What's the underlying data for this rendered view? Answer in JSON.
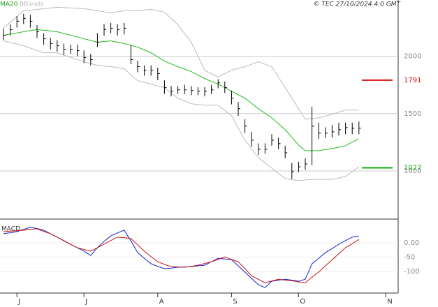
{
  "header": {
    "copyright": "© TEC 27/10/2024 4:0 GMT"
  },
  "chart_data": [
    {
      "type": "ohlc",
      "categories": [
        null,
        null,
        "J",
        null,
        null,
        null,
        null,
        null,
        null,
        null,
        null,
        null,
        "J",
        null,
        null,
        null,
        null,
        null,
        null,
        null,
        null,
        null,
        null,
        "A",
        null,
        null,
        null,
        null,
        null,
        null,
        null,
        null,
        null,
        null,
        "S",
        null,
        null,
        null,
        null,
        null,
        null,
        null,
        null,
        null,
        "O",
        null,
        null,
        null,
        null,
        null,
        null,
        null,
        null,
        null,
        null,
        null,
        null,
        "N"
      ],
      "high": [
        2240,
        2280,
        2350,
        2370,
        2360,
        2270,
        2200,
        2160,
        2140,
        2110,
        2100,
        2100,
        2050,
        2020,
        2200,
        2280,
        2290,
        2280,
        2290,
        2100,
        1960,
        1920,
        1920,
        1900,
        1790,
        1740,
        1740,
        1750,
        1740,
        1730,
        1730,
        1750,
        1800,
        1780,
        1700,
        1600,
        1450,
        1340,
        1240,
        1240,
        1320,
        1290,
        1220,
        1070,
        1080,
        1110,
        1560,
        1420,
        1380,
        1400,
        1420,
        1420,
        1420,
        1430,
        null,
        null,
        null,
        null
      ],
      "low": [
        2140,
        2180,
        2250,
        2280,
        2250,
        2160,
        2100,
        2060,
        2040,
        2010,
        2020,
        2000,
        1940,
        1920,
        2080,
        2180,
        2200,
        2180,
        2190,
        1930,
        1860,
        1830,
        1830,
        1790,
        1670,
        1650,
        1670,
        1670,
        1660,
        1660,
        1650,
        1670,
        1720,
        1680,
        1580,
        1480,
        1330,
        1210,
        1140,
        1150,
        1220,
        1190,
        1110,
        930,
        990,
        1010,
        1050,
        1280,
        1290,
        1290,
        1310,
        1320,
        1320,
        1320,
        null,
        null,
        null,
        null
      ],
      "close": [
        2183,
        2232,
        2305,
        2330,
        2305,
        2213,
        2152,
        2110,
        2091,
        2061,
        2061,
        2049,
        1988,
        1970,
        2122,
        2232,
        2244,
        2232,
        2244,
        1970,
        1909,
        1878,
        1878,
        1848,
        1726,
        1695,
        1707,
        1707,
        1701,
        1695,
        1695,
        1707,
        1768,
        1726,
        1634,
        1543,
        1390,
        1268,
        1189,
        1189,
        1268,
        1238,
        1158,
        994,
        1036,
        1061,
        1390,
        1329,
        1329,
        1341,
        1360,
        1378,
        1372,
        1372,
        null,
        null,
        null,
        null
      ],
      "color": "#000000",
      "series": [
        {
          "name": "MA20",
          "color": "#22bb22",
          "values": [
            2183,
            2193,
            2203,
            2213,
            2223,
            2232,
            2226,
            2220,
            2213,
            2198,
            2183,
            2168,
            2152,
            2137,
            2122,
            2128,
            2134,
            2122,
            2110,
            2095,
            2079,
            2055,
            2030,
            1994,
            1957,
            1933,
            1909,
            1888,
            1866,
            1836,
            1805,
            1780,
            1756,
            1726,
            1695,
            1665,
            1634,
            1589,
            1543,
            1503,
            1463,
            1412,
            1360,
            1293,
            1225,
            1176,
            1176,
            1176,
            1186,
            1195,
            1207,
            1219,
            1250,
            1280,
            null,
            null,
            null,
            null
          ]
        },
        {
          "name": "BBands",
          "color": "#bbbbbb",
          "upper": [
            2244,
            2295,
            2345,
            2396,
            2402,
            2408,
            2414,
            2420,
            2427,
            2424,
            2421,
            2418,
            2415,
            2406,
            2396,
            2387,
            2378,
            2387,
            2396,
            2396,
            2396,
            2403,
            2409,
            2396,
            2384,
            2329,
            2274,
            2198,
            2122,
            2000,
            1878,
            1848,
            1817,
            1848,
            1878,
            1894,
            1909,
            1930,
            1952,
            1930,
            1909,
            1818,
            1726,
            1635,
            1543,
            1451,
            1457,
            1463,
            1478,
            1494,
            1512,
            1531,
            1531,
            1531,
            null,
            null,
            null,
            null
          ],
          "lower": [
            2134,
            2120,
            2105,
            2091,
            2071,
            2050,
            2030,
            2030,
            2030,
            2010,
            1991,
            1971,
            1952,
            1936,
            1921,
            1915,
            1909,
            1900,
            1890,
            1838,
            1787,
            1772,
            1756,
            1741,
            1726,
            1680,
            1634,
            1610,
            1585,
            1579,
            1573,
            1573,
            1573,
            1528,
            1482,
            1375,
            1268,
            1192,
            1116,
            1070,
            1024,
            978,
            933,
            924,
            915,
            921,
            927,
            927,
            927,
            927,
            939,
            951,
            994,
            1036,
            null,
            null,
            null,
            null
          ]
        }
      ],
      "levels": [
        {
          "value": 1791,
          "color": "#dd1111"
        },
        {
          "value": 1027,
          "color": "#11aa11"
        }
      ],
      "ylim": [
        580,
        2490
      ],
      "yticks": [
        2000,
        1500,
        1000
      ],
      "grid": true
    },
    {
      "type": "line",
      "title": "MACD",
      "series": [
        {
          "color": "#1122cc",
          "values": [
            32,
            35,
            39,
            47,
            54,
            50,
            44,
            32,
            20,
            8,
            -5,
            -17,
            -29,
            -44,
            -17,
            5,
            24,
            35,
            44,
            7,
            -34,
            -54,
            -73,
            -82,
            -90,
            -88,
            -85,
            -84,
            -83,
            -80,
            -78,
            -66,
            -54,
            -56,
            -59,
            -80,
            -102,
            -124,
            -146,
            -156,
            -134,
            -130,
            -127,
            -130,
            -134,
            -127,
            -73,
            -54,
            -34,
            -20,
            -5,
            8,
            20,
            24,
            null,
            null,
            null,
            null
          ]
        },
        {
          "color": "#cc1111",
          "values": [
            39,
            41,
            42,
            44,
            47,
            49,
            40,
            32,
            20,
            7,
            -5,
            -17,
            -23,
            -29,
            -17,
            -5,
            8,
            20,
            18,
            15,
            -7,
            -29,
            -48,
            -66,
            -75,
            -83,
            -84,
            -85,
            -82,
            -78,
            -72,
            -66,
            -58,
            -49,
            -58,
            -66,
            -90,
            -115,
            -127,
            -139,
            -133,
            -127,
            -130,
            -132,
            -136,
            -139,
            -120,
            -102,
            -80,
            -59,
            -38,
            -17,
            -3,
            12,
            null,
            null,
            null,
            null
          ]
        }
      ],
      "ylim": [
        -175,
        78
      ],
      "yticks": [
        {
          "value": 0,
          "label": "0.00"
        },
        -50,
        -100
      ],
      "grid": true
    }
  ]
}
